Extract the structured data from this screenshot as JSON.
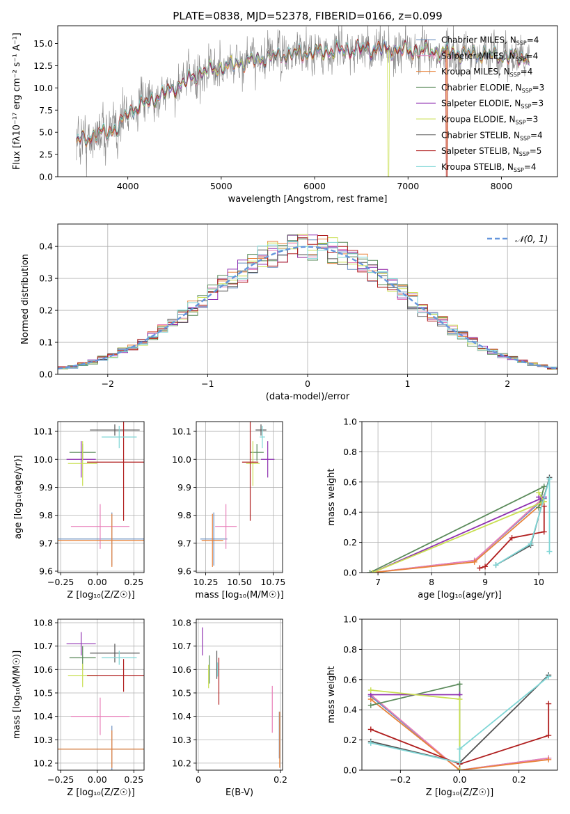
{
  "figure_title": "PLATE=0838, MJD=52378, FIBERID=0166, z=0.099",
  "colors": {
    "Chabrier MILES": "#6b8fbf",
    "Salpeter MILES": "#e87fb9",
    "Kroupa MILES": "#e8823a",
    "Chabrier ELODIE": "#5a8a5a",
    "Salpeter ELODIE": "#8e2fb0",
    "Kroupa ELODIE": "#c9df52",
    "Chabrier STELIB": "#555555",
    "Salpeter STELIB": "#b01e1e",
    "Kroupa STELIB": "#7fd6d6",
    "N01": "#6495dc",
    "grid": "#b0b0b0"
  },
  "chart_data": [
    {
      "id": "spectrum",
      "type": "line",
      "xlabel": "wavelength [Angstrom, rest frame]",
      "ylabel": "Flux [fλ10⁻¹⁷ erg cm⁻² s⁻¹ A⁻¹]",
      "xlim": [
        3250,
        8600
      ],
      "ylim": [
        0,
        17
      ],
      "xticks": [
        4000,
        5000,
        6000,
        7000,
        8000
      ],
      "yticks": [
        0.0,
        2.5,
        5.0,
        7.5,
        10.0,
        12.5,
        15.0
      ],
      "grid": false,
      "legend_position": "right",
      "legend": [
        {
          "model": "Chabrier MILES",
          "n": "4"
        },
        {
          "model": "Salpeter MILES",
          "n": "4"
        },
        {
          "model": "Kroupa MILES",
          "n": "4"
        },
        {
          "model": "Chabrier ELODIE",
          "n": "3"
        },
        {
          "model": "Salpeter ELODIE",
          "n": "3"
        },
        {
          "model": "Kroupa ELODIE",
          "n": "3"
        },
        {
          "model": "Chabrier STELIB",
          "n": "4"
        },
        {
          "model": "Salpeter STELIB",
          "n": "5"
        },
        {
          "model": "Kroupa STELIB",
          "n": "4"
        }
      ],
      "observed_color": "#808080",
      "continuum": [
        [
          3450,
          4.0
        ],
        [
          3700,
          4.8
        ],
        [
          3900,
          5.5
        ],
        [
          4000,
          7.3
        ],
        [
          4200,
          8.3
        ],
        [
          4500,
          10.0
        ],
        [
          4800,
          11.8
        ],
        [
          5200,
          12.8
        ],
        [
          5600,
          13.6
        ],
        [
          6000,
          14.0
        ],
        [
          6500,
          14.4
        ],
        [
          7000,
          14.2
        ],
        [
          7400,
          14.0
        ],
        [
          8000,
          13.6
        ],
        [
          8300,
          13.4
        ]
      ],
      "dropouts": [
        {
          "model": "Kroupa ELODIE",
          "x": 6790
        },
        {
          "model": "Kroupa MILES",
          "x": 7420
        },
        {
          "model": "Salpeter STELIB",
          "x": 7415
        }
      ]
    },
    {
      "id": "residuals",
      "type": "line",
      "xlabel": "(data-model)/error",
      "ylabel": "Normed distribution",
      "xlim": [
        -2.5,
        2.5
      ],
      "ylim": [
        0,
        0.47
      ],
      "xticks": [
        -2,
        -1,
        0,
        1,
        2
      ],
      "yticks": [
        0.0,
        0.1,
        0.2,
        0.3,
        0.4
      ],
      "grid": true,
      "legend_position": "top-right",
      "reference_label": "𝒩(0, 1)",
      "bin_width": 0.1
    },
    {
      "id": "age_vs_Z",
      "type": "scatter",
      "xlabel": "Z [log₁₀(Z/Z☉)]",
      "ylabel": "age  [log₁₀(age/yr)]",
      "xlim": [
        -0.27,
        0.32
      ],
      "ylim": [
        9.595,
        10.135
      ],
      "xticks": [
        -0.25,
        0.0,
        0.25
      ],
      "xtick_labels": [
        "−0.25",
        "0.00",
        "0.25"
      ],
      "yticks": [
        9.6,
        9.7,
        9.8,
        9.9,
        10.0,
        10.1
      ],
      "grid": true,
      "points": [
        {
          "model": "Chabrier MILES",
          "x": 0.1,
          "xerr": 0.37,
          "y": 9.715,
          "yerr": 0.095
        },
        {
          "model": "Salpeter MILES",
          "x": 0.02,
          "xerr": 0.2,
          "y": 9.76,
          "yerr": 0.08
        },
        {
          "model": "Kroupa MILES",
          "x": 0.1,
          "xerr": 0.37,
          "y": 9.71,
          "yerr": 0.095
        },
        {
          "model": "Chabrier ELODIE",
          "x": -0.1,
          "xerr": 0.09,
          "y": 10.025,
          "yerr": 0.03
        },
        {
          "model": "Salpeter ELODIE",
          "x": -0.11,
          "xerr": 0.1,
          "y": 10.0,
          "yerr": 0.065
        },
        {
          "model": "Kroupa ELODIE",
          "x": -0.1,
          "xerr": 0.1,
          "y": 9.985,
          "yerr": 0.08
        },
        {
          "model": "Chabrier STELIB",
          "x": 0.12,
          "xerr": 0.17,
          "y": 10.105,
          "yerr": 0.02
        },
        {
          "model": "Salpeter STELIB",
          "x": 0.18,
          "xerr": 0.25,
          "y": 9.99,
          "yerr": 0.21
        },
        {
          "model": "Kroupa STELIB",
          "x": 0.15,
          "xerr": 0.12,
          "y": 10.08,
          "yerr": 0.04
        }
      ]
    },
    {
      "id": "age_vs_mass",
      "type": "scatter",
      "xlabel": "mass [log₁₀(M/M☉)]",
      "xlim": [
        10.18,
        10.82
      ],
      "ylim": [
        9.595,
        10.135
      ],
      "xticks": [
        10.25,
        10.5,
        10.75
      ],
      "xtick_labels": [
        "10.25",
        "10.50",
        "10.75"
      ],
      "yticks": [
        9.6,
        9.7,
        9.8,
        9.9,
        10.0,
        10.1
      ],
      "grid": true,
      "points": [
        {
          "model": "Chabrier MILES",
          "x": 10.31,
          "xerr": 0.1,
          "y": 9.715,
          "yerr": 0.095
        },
        {
          "model": "Salpeter MILES",
          "x": 10.4,
          "xerr": 0.08,
          "y": 9.76,
          "yerr": 0.08
        },
        {
          "model": "Kroupa MILES",
          "x": 10.3,
          "xerr": 0.08,
          "y": 9.71,
          "yerr": 0.095
        },
        {
          "model": "Chabrier ELODIE",
          "x": 10.63,
          "xerr": 0.05,
          "y": 10.025,
          "yerr": 0.03
        },
        {
          "model": "Salpeter ELODIE",
          "x": 10.71,
          "xerr": 0.05,
          "y": 10.0,
          "yerr": 0.065
        },
        {
          "model": "Kroupa ELODIE",
          "x": 10.6,
          "xerr": 0.05,
          "y": 9.985,
          "yerr": 0.08
        },
        {
          "model": "Chabrier STELIB",
          "x": 10.66,
          "xerr": 0.04,
          "y": 10.105,
          "yerr": 0.02
        },
        {
          "model": "Salpeter STELIB",
          "x": 10.58,
          "xerr": 0.06,
          "y": 9.99,
          "yerr": 0.21
        },
        {
          "model": "Kroupa STELIB",
          "x": 10.67,
          "xerr": 0.02,
          "y": 10.08,
          "yerr": 0.04
        }
      ]
    },
    {
      "id": "weight_vs_age",
      "type": "line",
      "xlabel": "age  [log₁₀(age/yr)]",
      "ylabel": "mass weight",
      "xlim": [
        6.7,
        10.35
      ],
      "ylim": [
        0,
        1.0
      ],
      "xticks": [
        7,
        8,
        9,
        10
      ],
      "yticks": [
        0.0,
        0.2,
        0.4,
        0.6,
        0.8,
        1.0
      ],
      "grid": true,
      "series": [
        {
          "model": "Chabrier MILES",
          "x": [
            6.9,
            8.8,
            10.1
          ],
          "y": [
            0.0,
            0.08,
            0.49
          ]
        },
        {
          "model": "Salpeter MILES",
          "x": [
            6.9,
            8.8,
            10.1
          ],
          "y": [
            0.0,
            0.08,
            0.5
          ]
        },
        {
          "model": "Kroupa MILES",
          "x": [
            6.9,
            8.8,
            10.1
          ],
          "y": [
            0.0,
            0.07,
            0.47
          ]
        },
        {
          "model": "Chabrier ELODIE",
          "x": [
            6.85,
            10.1,
            10.0
          ],
          "y": [
            0.0,
            0.57,
            0.43
          ]
        },
        {
          "model": "Salpeter ELODIE",
          "x": [
            6.9,
            10.1,
            10.0
          ],
          "y": [
            0.0,
            0.5,
            0.5
          ]
        },
        {
          "model": "Kroupa ELODIE",
          "x": [
            6.9,
            10.1,
            10.0
          ],
          "y": [
            0.0,
            0.47,
            0.53
          ]
        },
        {
          "model": "Chabrier STELIB",
          "x": [
            9.2,
            9.85,
            10.2
          ],
          "y": [
            0.05,
            0.18,
            0.63
          ]
        },
        {
          "model": "Salpeter STELIB",
          "x": [
            8.9,
            9.0,
            9.5,
            10.1,
            10.1
          ],
          "y": [
            0.03,
            0.04,
            0.23,
            0.27,
            0.44
          ]
        },
        {
          "model": "Kroupa STELIB",
          "x": [
            9.2,
            9.85,
            10.2,
            10.2
          ],
          "y": [
            0.05,
            0.19,
            0.62,
            0.14
          ]
        }
      ]
    },
    {
      "id": "mass_vs_Z",
      "type": "scatter",
      "xlabel": "Z [log₁₀(Z/Z☉)]",
      "ylabel": "mass [log₁₀(M/M☉)]",
      "xlim": [
        -0.27,
        0.32
      ],
      "ylim": [
        10.17,
        10.815
      ],
      "xticks": [
        -0.25,
        0.0,
        0.25
      ],
      "xtick_labels": [
        "−0.25",
        "0.00",
        "0.25"
      ],
      "yticks": [
        10.2,
        10.3,
        10.4,
        10.5,
        10.6,
        10.7,
        10.8
      ],
      "grid": true,
      "points": [
        {
          "model": "Chabrier MILES",
          "x": 0.1,
          "xerr": 0.37,
          "y": 10.26,
          "yerr": 0.1
        },
        {
          "model": "Salpeter MILES",
          "x": 0.02,
          "xerr": 0.2,
          "y": 10.4,
          "yerr": 0.08
        },
        {
          "model": "Kroupa MILES",
          "x": 0.1,
          "xerr": 0.37,
          "y": 10.26,
          "yerr": 0.08
        },
        {
          "model": "Chabrier ELODIE",
          "x": -0.1,
          "xerr": 0.09,
          "y": 10.65,
          "yerr": 0.05
        },
        {
          "model": "Salpeter ELODIE",
          "x": -0.11,
          "xerr": 0.1,
          "y": 10.71,
          "yerr": 0.05
        },
        {
          "model": "Kroupa ELODIE",
          "x": -0.1,
          "xerr": 0.1,
          "y": 10.575,
          "yerr": 0.05
        },
        {
          "model": "Chabrier STELIB",
          "x": 0.12,
          "xerr": 0.17,
          "y": 10.67,
          "yerr": 0.04
        },
        {
          "model": "Salpeter STELIB",
          "x": 0.18,
          "xerr": 0.25,
          "y": 10.575,
          "yerr": 0.07
        },
        {
          "model": "Kroupa STELIB",
          "x": 0.15,
          "xerr": 0.12,
          "y": 10.65,
          "yerr": 0.03
        }
      ]
    },
    {
      "id": "mass_vs_ebv",
      "type": "scatter",
      "xlabel": "E(B-V)",
      "xlim": [
        -0.005,
        0.205
      ],
      "ylim": [
        10.17,
        10.815
      ],
      "xticks": [
        0.0,
        0.2
      ],
      "xtick_labels": [
        "0",
        "0.2"
      ],
      "yticks": [
        10.2,
        10.3,
        10.4,
        10.5,
        10.6,
        10.7,
        10.8
      ],
      "grid": true,
      "points": [
        {
          "model": "Chabrier MILES",
          "x": 0.197,
          "xerr": 0.0,
          "y": 10.32,
          "yerr": 0.1
        },
        {
          "model": "Salpeter MILES",
          "x": 0.18,
          "xerr": 0.0,
          "y": 10.43,
          "yerr": 0.1
        },
        {
          "model": "Kroupa MILES",
          "x": 0.198,
          "xerr": 0.0,
          "y": 10.3,
          "yerr": 0.12
        },
        {
          "model": "Chabrier ELODIE",
          "x": 0.027,
          "xerr": 0.0,
          "y": 10.6,
          "yerr": 0.06
        },
        {
          "model": "Salpeter ELODIE",
          "x": 0.01,
          "xerr": 0.0,
          "y": 10.72,
          "yerr": 0.06
        },
        {
          "model": "Kroupa ELODIE",
          "x": 0.025,
          "xerr": 0.0,
          "y": 10.57,
          "yerr": 0.05
        },
        {
          "model": "Chabrier STELIB",
          "x": 0.045,
          "xerr": 0.0,
          "y": 10.62,
          "yerr": 0.06
        },
        {
          "model": "Salpeter STELIB",
          "x": 0.05,
          "xerr": 0.0,
          "y": 10.55,
          "yerr": 0.1
        },
        {
          "model": "Kroupa STELIB",
          "x": 0.047,
          "xerr": 0.0,
          "y": 10.6,
          "yerr": 0.03
        }
      ]
    },
    {
      "id": "weight_vs_Z",
      "type": "line",
      "xlabel": "Z [log₁₀(Z/Z☉)]",
      "ylabel": "mass weight",
      "xlim": [
        -0.33,
        0.33
      ],
      "ylim": [
        0,
        1.0
      ],
      "xticks": [
        -0.2,
        0.0,
        0.2
      ],
      "xtick_labels": [
        "−0.2",
        "0.0",
        "0.2"
      ],
      "yticks": [
        0.0,
        0.2,
        0.4,
        0.6,
        0.8,
        1.0
      ],
      "grid": true,
      "series": [
        {
          "model": "Chabrier MILES",
          "x": [
            -0.3,
            0.0,
            0.3
          ],
          "y": [
            0.49,
            0.0,
            0.08
          ]
        },
        {
          "model": "Salpeter MILES",
          "x": [
            -0.3,
            0.0,
            0.3
          ],
          "y": [
            0.5,
            0.0,
            0.08
          ]
        },
        {
          "model": "Kroupa MILES",
          "x": [
            -0.3,
            0.0,
            0.3
          ],
          "y": [
            0.47,
            0.0,
            0.07
          ]
        },
        {
          "model": "Chabrier ELODIE",
          "x": [
            -0.3,
            0.0,
            0.0
          ],
          "y": [
            0.43,
            0.57,
            0.0
          ]
        },
        {
          "model": "Salpeter ELODIE",
          "x": [
            -0.3,
            0.0
          ],
          "y": [
            0.5,
            0.5
          ]
        },
        {
          "model": "Kroupa ELODIE",
          "x": [
            -0.3,
            0.0,
            0.0
          ],
          "y": [
            0.53,
            0.47,
            0.0
          ]
        },
        {
          "model": "Chabrier STELIB",
          "x": [
            -0.3,
            0.0,
            0.3
          ],
          "y": [
            0.19,
            0.05,
            0.63
          ]
        },
        {
          "model": "Salpeter STELIB",
          "x": [
            -0.3,
            0.0,
            0.3,
            0.3
          ],
          "y": [
            0.27,
            0.04,
            0.23,
            0.44
          ]
        },
        {
          "model": "Kroupa STELIB",
          "x": [
            -0.3,
            0.0,
            0.0,
            0.3
          ],
          "y": [
            0.18,
            0.05,
            0.14,
            0.62
          ]
        }
      ]
    }
  ]
}
